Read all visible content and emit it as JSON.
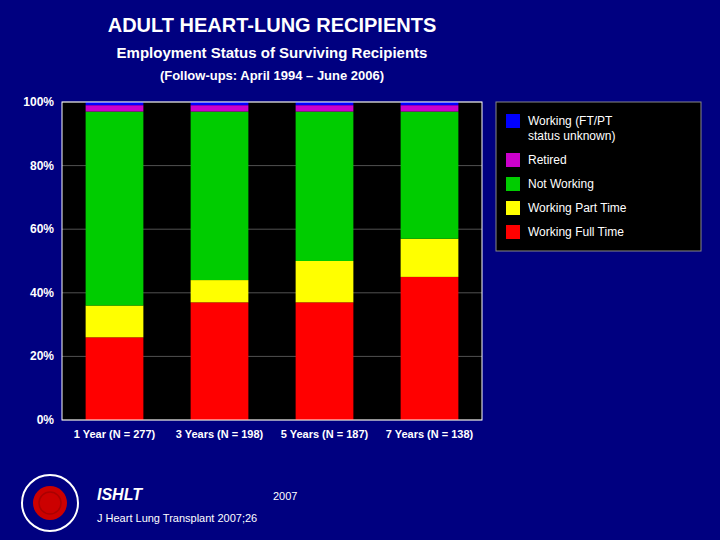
{
  "chart_data": {
    "type": "bar",
    "stacked": true,
    "title": "ADULT HEART-LUNG RECIPIENTS",
    "subtitle": "Employment Status of Surviving Recipients",
    "annotations": [
      "(Follow-ups: April 1994 – June 2006)",
      "ISHLT",
      "2007",
      "J Heart Lung Transplant 2007;26"
    ],
    "categories": [
      "1 Year (N = 277)",
      "3 Years (N = 198)",
      "5 Years (N = 187)",
      "7 Years (N = 138)"
    ],
    "series": [
      {
        "name": "Working Full Time",
        "color": "#ff0000",
        "values": [
          26,
          37,
          37,
          45
        ]
      },
      {
        "name": "Working Part Time",
        "color": "#ffff00",
        "values": [
          10,
          7,
          13,
          12
        ]
      },
      {
        "name": "Not Working",
        "color": "#00cc00",
        "values": [
          61,
          53,
          47,
          40
        ]
      },
      {
        "name": "Retired",
        "color": "#cc00cc",
        "values": [
          2,
          2,
          2,
          2
        ]
      },
      {
        "name": "Working (FT/PT\nstatus unknown)",
        "color": "#0000ff",
        "values": [
          1,
          1,
          1,
          1
        ]
      }
    ],
    "ylim": [
      0,
      100
    ],
    "yticks": [
      {
        "value": 0,
        "label": "0%"
      },
      {
        "value": 20,
        "label": "20%"
      },
      {
        "value": 40,
        "label": "40%"
      },
      {
        "value": 60,
        "label": "60%"
      },
      {
        "value": 80,
        "label": "80%"
      },
      {
        "value": 100,
        "label": "100%"
      }
    ],
    "grid": true,
    "legend": "right"
  }
}
